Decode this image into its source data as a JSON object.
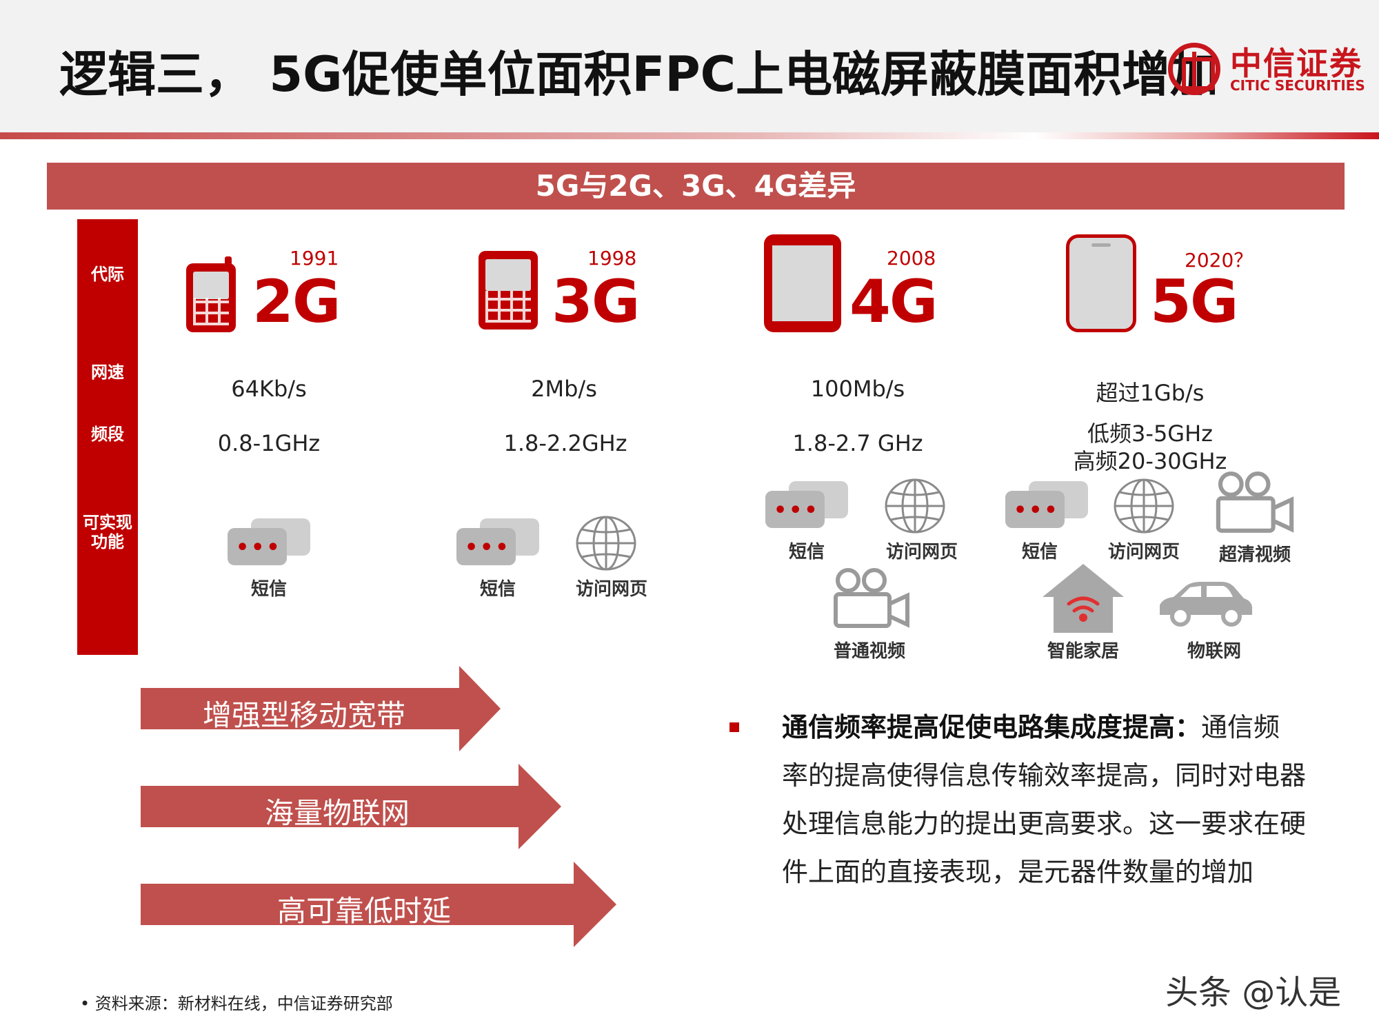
{
  "header": {
    "title": "逻辑三， 5G促使单位面积FPC上电磁屏蔽膜面积增加",
    "logo_cn": "中信证券",
    "logo_en": "CITIC SECURITIES"
  },
  "banner": "5G与2G、3G、4G差异",
  "sidebar": {
    "generation": "代际",
    "speed": "网速",
    "band": "频段",
    "functions": "可实现功能"
  },
  "generations": [
    {
      "year": "1991",
      "name": "2G",
      "speed": "64Kb/s",
      "band": "0.8-1GHz"
    },
    {
      "year": "1998",
      "name": "3G",
      "speed": "2Mb/s",
      "band": "1.8-2.2GHz"
    },
    {
      "year": "2008",
      "name": "4G",
      "speed": "100Mb/s",
      "band": "1.8-2.7 GHz"
    },
    {
      "year": "2020？",
      "name": "5G",
      "speed": "超过1Gb/s",
      "band_low": "低频3-5GHz",
      "band_high": "高频20-30GHz"
    }
  ],
  "functions": {
    "sms": "短信",
    "web": "访问网页",
    "video": "普通视频",
    "hd_video": "超清视频",
    "smart_home": "智能家居",
    "iot": "物联网"
  },
  "arrows": [
    "增强型移动宽带",
    "海量物联网",
    "高可靠低时延"
  ],
  "paragraph": {
    "bold": "通信频率提高促使电路集成度提高：",
    "text": "通信频率的提高使得信息传输效率提高，同时对电器处理信息能力的提出更高要求。这一要求在硬件上面的直接表现，是元器件数量的增加"
  },
  "source": "资料来源：新材料在线，中信证券研究部",
  "watermark": "头条 @认是",
  "colors": {
    "brand_red": "#c00000",
    "banner_red": "#c0504d",
    "logo_red": "#c8161d"
  }
}
